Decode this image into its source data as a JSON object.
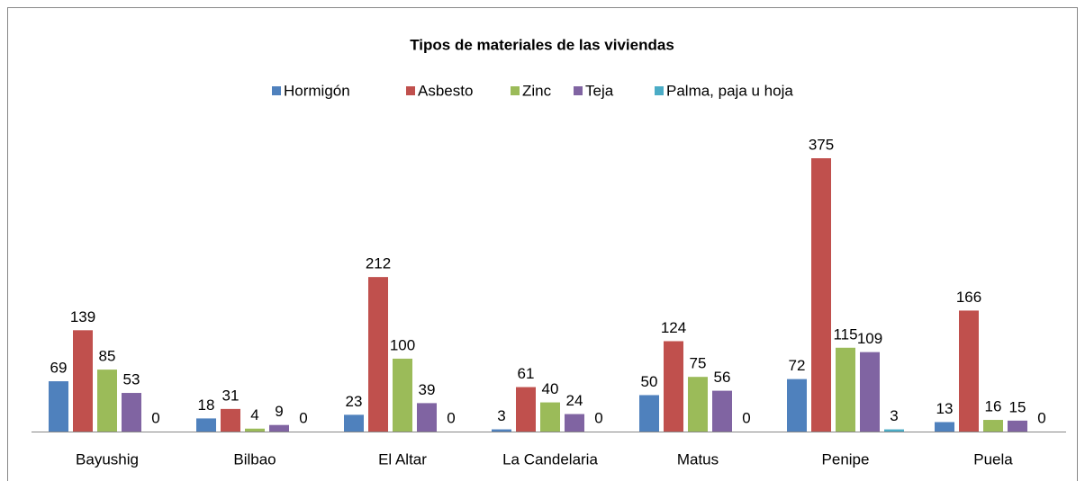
{
  "chart_data": {
    "type": "bar",
    "title": "Tipos de materiales de las viviendas",
    "categories": [
      "Bayushig",
      "Bilbao",
      "El Altar",
      "La Candelaria",
      "Matus",
      "Penipe",
      "Puela"
    ],
    "series": [
      {
        "name": "Hormigón",
        "color": "#4f81bd",
        "values": [
          69,
          18,
          23,
          3,
          50,
          72,
          13
        ]
      },
      {
        "name": "Asbesto",
        "color": "#c0504d",
        "values": [
          139,
          31,
          212,
          61,
          124,
          375,
          166
        ]
      },
      {
        "name": "Zinc",
        "color": "#9bbb59",
        "values": [
          85,
          4,
          100,
          40,
          75,
          115,
          16
        ]
      },
      {
        "name": "Teja",
        "color": "#8064a2",
        "values": [
          53,
          9,
          39,
          24,
          56,
          109,
          15
        ]
      },
      {
        "name": "Palma, paja u hoja",
        "color": "#4bacc6",
        "values": [
          0,
          0,
          0,
          0,
          0,
          3,
          0
        ]
      }
    ],
    "legend": "top"
  }
}
